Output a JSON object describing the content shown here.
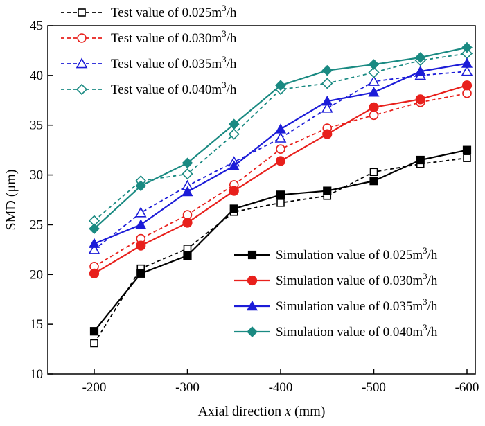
{
  "chart_data": {
    "type": "line",
    "xlabel_prefix": "Axial direction ",
    "xlabel_var": "x",
    "xlabel_suffix": " (mm)",
    "ylabel": "SMD (μm)",
    "xlim": [
      -200,
      -600
    ],
    "ylim": [
      10,
      45
    ],
    "x": [
      -200,
      -250,
      -300,
      -350,
      -400,
      -450,
      -500,
      -550,
      -600
    ],
    "x_ticks": [
      -200,
      -300,
      -400,
      -500,
      -600
    ],
    "x_tick_labels": [
      "-200",
      "-300",
      "-400",
      "-500",
      "-600"
    ],
    "y_ticks": [
      10,
      15,
      20,
      25,
      30,
      35,
      40,
      45
    ],
    "y_tick_labels": [
      "10",
      "15",
      "20",
      "25",
      "30",
      "35",
      "40",
      "45"
    ],
    "grid": false,
    "legend_test_placement": "top-left",
    "legend_sim_placement": "bottom-right",
    "series": [
      {
        "name_prefix": "Test value of 0.025m",
        "name_sup": "3",
        "name_suffix": "/h",
        "kind": "test",
        "color": "#000000",
        "marker": "square-open",
        "dash": true,
        "values": [
          13.1,
          20.6,
          22.6,
          26.3,
          27.2,
          27.9,
          30.3,
          31.1,
          31.7
        ]
      },
      {
        "name_prefix": "Test value of 0.030m",
        "name_sup": "3",
        "name_suffix": "/h",
        "kind": "test",
        "color": "#e8201c",
        "marker": "circle-open",
        "dash": true,
        "values": [
          20.8,
          23.6,
          26.0,
          29.0,
          32.6,
          34.7,
          36.0,
          37.3,
          38.2
        ]
      },
      {
        "name_prefix": "Test value of 0.035m",
        "name_sup": "3",
        "name_suffix": "/h",
        "kind": "test",
        "color": "#1c1cd8",
        "marker": "triangle-open",
        "dash": true,
        "values": [
          22.5,
          26.2,
          28.9,
          31.3,
          33.7,
          36.7,
          39.4,
          40.0,
          40.4
        ]
      },
      {
        "name_prefix": "Test value of 0.040m",
        "name_sup": "3",
        "name_suffix": "/h",
        "kind": "test",
        "color": "#1a8a82",
        "marker": "diamond-open",
        "dash": true,
        "values": [
          25.4,
          29.4,
          30.1,
          34.1,
          38.6,
          39.2,
          40.3,
          41.5,
          42.2
        ]
      },
      {
        "name_prefix": "Simulation value of 0.025m",
        "name_sup": "3",
        "name_suffix": "/h",
        "kind": "sim",
        "color": "#000000",
        "marker": "square-filled",
        "dash": false,
        "values": [
          14.3,
          20.1,
          21.9,
          26.6,
          28.0,
          28.4,
          29.4,
          31.5,
          32.5
        ]
      },
      {
        "name_prefix": "Simulation value of 0.030m",
        "name_sup": "3",
        "name_suffix": "/h",
        "kind": "sim",
        "color": "#e8201c",
        "marker": "circle-filled",
        "dash": false,
        "values": [
          20.1,
          22.9,
          25.2,
          28.4,
          31.4,
          34.1,
          36.8,
          37.6,
          39.0
        ]
      },
      {
        "name_prefix": "Simulation value of 0.035m",
        "name_sup": "3",
        "name_suffix": "/h",
        "kind": "sim",
        "color": "#1c1cd8",
        "marker": "triangle-filled",
        "dash": false,
        "values": [
          23.1,
          25.0,
          28.3,
          30.9,
          34.6,
          37.4,
          38.3,
          40.4,
          41.2
        ]
      },
      {
        "name_prefix": "Simulation value of 0.040m",
        "name_sup": "3",
        "name_suffix": "/h",
        "kind": "sim",
        "color": "#1a8a82",
        "marker": "diamond-filled",
        "dash": false,
        "values": [
          24.6,
          28.9,
          31.2,
          35.1,
          39.0,
          40.5,
          41.1,
          41.8,
          42.8
        ]
      }
    ]
  }
}
